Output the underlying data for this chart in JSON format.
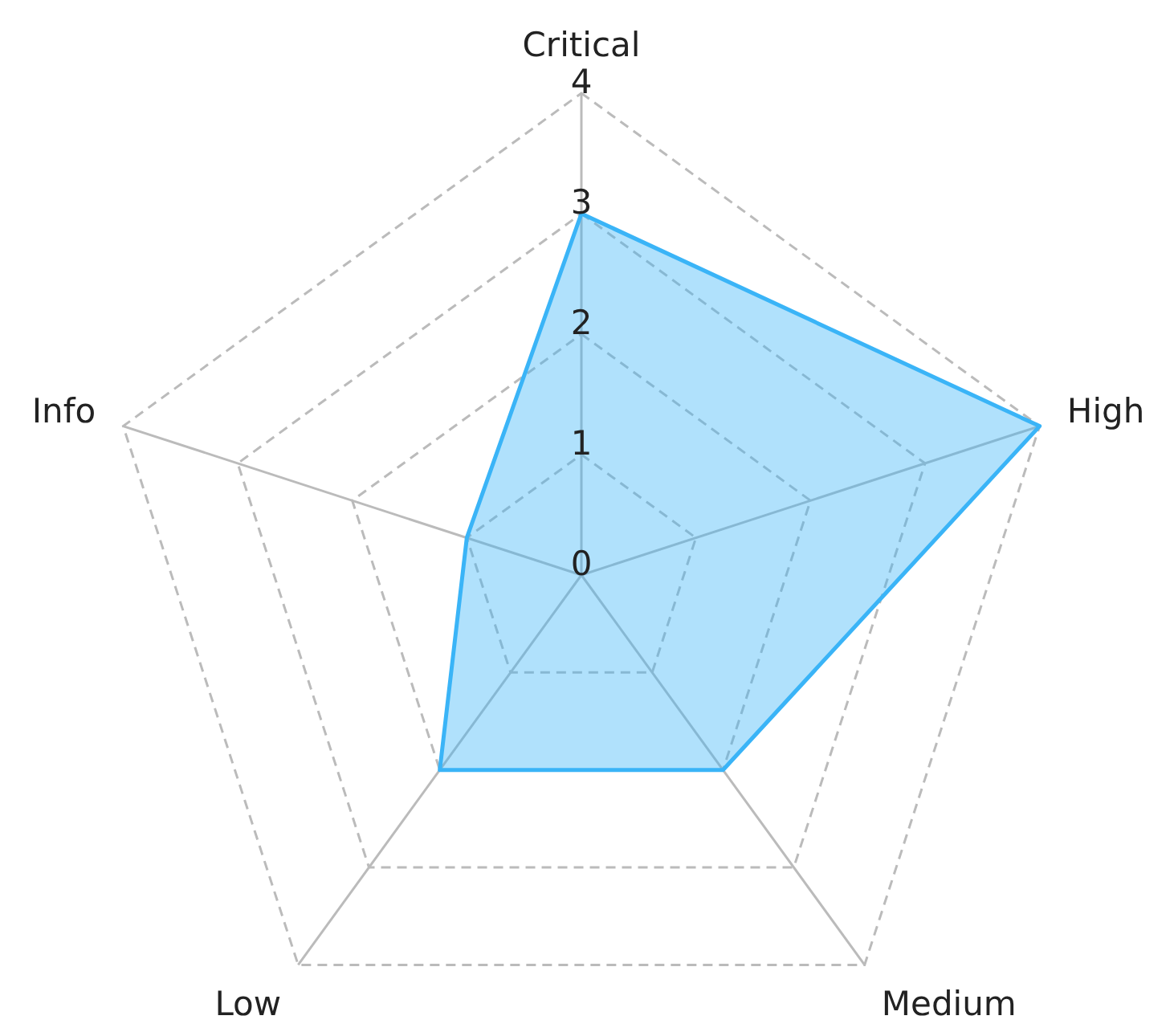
{
  "chart_data": {
    "type": "radar",
    "categories": [
      "Critical",
      "High",
      "Medium",
      "Low",
      "Info"
    ],
    "series": [
      {
        "color": "#3ab4f7",
        "values": [
          3,
          4,
          2,
          2,
          1
        ]
      }
    ],
    "ylim": [
      0,
      4
    ],
    "yticks": [
      0,
      1,
      2,
      3,
      4
    ],
    "grid": true
  }
}
